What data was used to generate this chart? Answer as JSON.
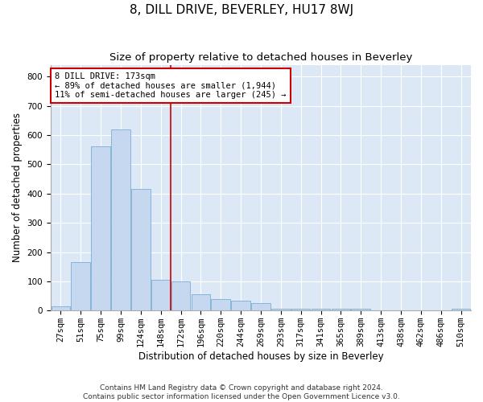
{
  "title": "8, DILL DRIVE, BEVERLEY, HU17 8WJ",
  "subtitle": "Size of property relative to detached houses in Beverley",
  "xlabel": "Distribution of detached houses by size in Beverley",
  "ylabel": "Number of detached properties",
  "footer_line1": "Contains HM Land Registry data © Crown copyright and database right 2024.",
  "footer_line2": "Contains public sector information licensed under the Open Government Licence v3.0.",
  "bar_color": "#c5d8f0",
  "bar_edge_color": "#7bafd4",
  "vline_color": "#cc0000",
  "ann_box_color": "#cc0000",
  "background_color": "#dce8f5",
  "grid_color": "#ffffff",
  "categories": [
    "27sqm",
    "51sqm",
    "75sqm",
    "99sqm",
    "124sqm",
    "148sqm",
    "172sqm",
    "196sqm",
    "220sqm",
    "244sqm",
    "269sqm",
    "293sqm",
    "317sqm",
    "341sqm",
    "365sqm",
    "389sqm",
    "413sqm",
    "438sqm",
    "462sqm",
    "486sqm",
    "510sqm"
  ],
  "values": [
    15,
    165,
    560,
    620,
    415,
    105,
    100,
    55,
    40,
    35,
    25,
    5,
    5,
    5,
    5,
    5,
    0,
    0,
    0,
    0,
    5
  ],
  "ylim": [
    0,
    840
  ],
  "yticks": [
    0,
    100,
    200,
    300,
    400,
    500,
    600,
    700,
    800
  ],
  "annotation_text_line1": "8 DILL DRIVE: 173sqm",
  "annotation_text_line2": "← 89% of detached houses are smaller (1,944)",
  "annotation_text_line3": "11% of semi-detached houses are larger (245) →",
  "vline_x_index": 5,
  "title_fontsize": 11,
  "subtitle_fontsize": 9.5,
  "label_fontsize": 8.5,
  "tick_fontsize": 7.5,
  "ann_fontsize": 7.5,
  "footer_fontsize": 6.5
}
